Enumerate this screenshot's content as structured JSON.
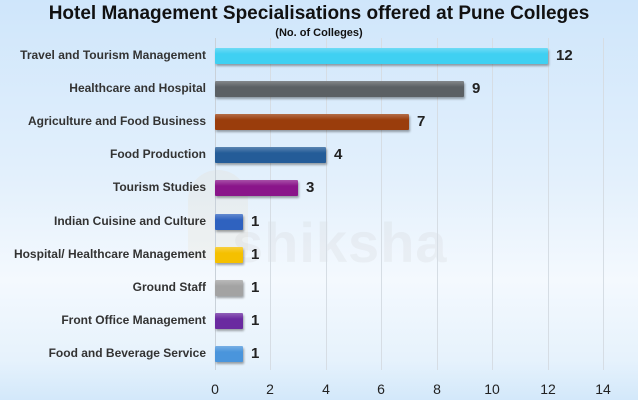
{
  "chart_data": {
    "type": "bar",
    "orientation": "horizontal",
    "title": "Hotel Management Specialisations offered at Pune Colleges",
    "subtitle": "(No. of Colleges)",
    "xlabel": "",
    "ylabel": "",
    "xlim": [
      0,
      14
    ],
    "x_ticks": [
      "0",
      "2",
      "4",
      "6",
      "8",
      "10",
      "12",
      "14"
    ],
    "grid": true,
    "legend": null,
    "categories": [
      "Travel and Tourism Management",
      "Healthcare and Hospital",
      "Agriculture and Food Business",
      "Food Production",
      "Tourism Studies",
      "Indian Cuisine and Culture",
      "Hospital/ Healthcare Management",
      "Ground Staff",
      "Front Office Management",
      "Food and Beverage Service"
    ],
    "values": [
      12,
      9,
      7,
      4,
      3,
      1,
      1,
      1,
      1,
      1
    ],
    "value_labels": [
      "12",
      "9",
      "7",
      "4",
      "3",
      "1",
      "1",
      "1",
      "1",
      "1"
    ],
    "colors": [
      "#3fd0f2",
      "#5b6064",
      "#9a3d0c",
      "#245c98",
      "#8a158a",
      "#2f62bf",
      "#f5c000",
      "#a3a3a3",
      "#6a2aa0",
      "#4a95dc"
    ]
  },
  "watermark": "shiksha"
}
